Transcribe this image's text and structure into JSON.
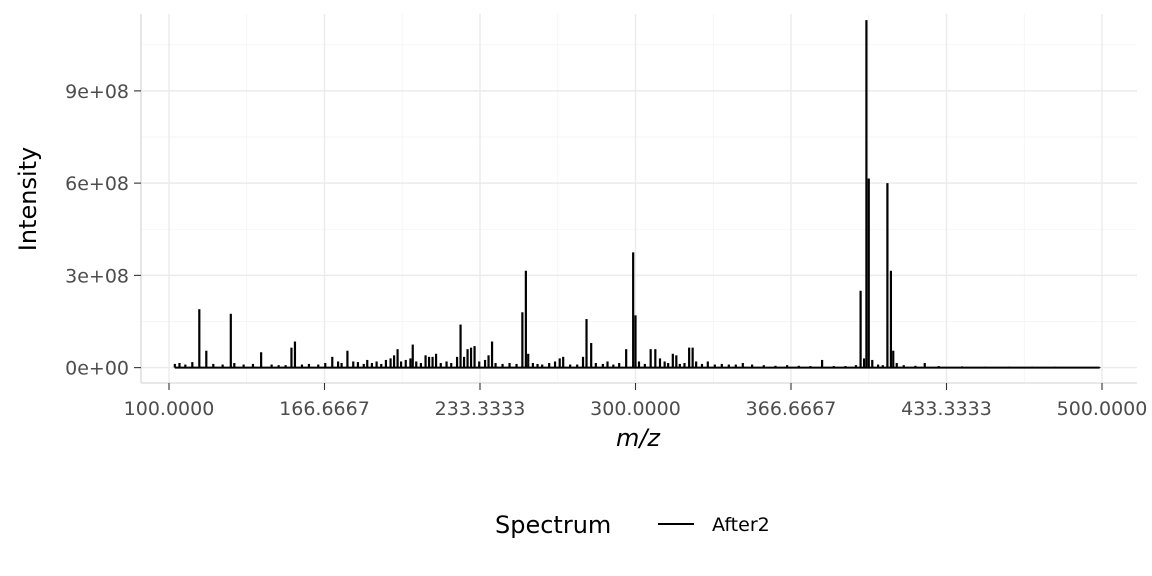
{
  "chart_data": {
    "type": "line",
    "xlabel": "m/z",
    "ylabel": "Intensity",
    "xlim": [
      88,
      515
    ],
    "ylim": [
      -50000000,
      1150000000
    ],
    "x_ticks": [
      100,
      166.6667,
      233.3333,
      300,
      366.6667,
      433.3333,
      500
    ],
    "x_tick_labels": [
      "100.0000",
      "166.6667",
      "233.3333",
      "300.0000",
      "366.6667",
      "433.3333",
      "500.0000"
    ],
    "y_ticks": [
      0,
      300000000,
      600000000,
      900000000
    ],
    "y_tick_labels": [
      "0e+00",
      "3e+08",
      "6e+08",
      "9e+08"
    ],
    "grid": true,
    "legend": {
      "title": "Spectrum",
      "position": "bottom"
    },
    "series": [
      {
        "name": "After2",
        "color": "#000000",
        "peaks": [
          [
            102.5,
            12000000
          ],
          [
            104.5,
            15000000
          ],
          [
            107,
            10000000
          ],
          [
            110,
            18000000
          ],
          [
            113,
            190000000
          ],
          [
            116,
            55000000
          ],
          [
            119,
            12000000
          ],
          [
            123,
            10000000
          ],
          [
            126.5,
            175000000
          ],
          [
            128,
            15000000
          ],
          [
            132,
            10000000
          ],
          [
            136,
            12000000
          ],
          [
            139.5,
            50000000
          ],
          [
            144,
            10000000
          ],
          [
            147,
            8000000
          ],
          [
            150,
            8000000
          ],
          [
            152.5,
            65000000
          ],
          [
            154,
            85000000
          ],
          [
            157,
            10000000
          ],
          [
            160,
            12000000
          ],
          [
            164,
            10000000
          ],
          [
            167,
            15000000
          ],
          [
            170,
            35000000
          ],
          [
            172.5,
            20000000
          ],
          [
            174,
            15000000
          ],
          [
            176.5,
            55000000
          ],
          [
            179,
            20000000
          ],
          [
            181,
            18000000
          ],
          [
            183.5,
            12000000
          ],
          [
            185,
            25000000
          ],
          [
            187,
            15000000
          ],
          [
            189,
            20000000
          ],
          [
            191,
            12000000
          ],
          [
            193,
            25000000
          ],
          [
            195,
            30000000
          ],
          [
            196.5,
            40000000
          ],
          [
            198,
            60000000
          ],
          [
            199.5,
            20000000
          ],
          [
            201.5,
            25000000
          ],
          [
            203.5,
            30000000
          ],
          [
            204.5,
            75000000
          ],
          [
            206,
            20000000
          ],
          [
            208,
            15000000
          ],
          [
            210,
            40000000
          ],
          [
            211.5,
            35000000
          ],
          [
            213,
            35000000
          ],
          [
            214.5,
            45000000
          ],
          [
            216.5,
            15000000
          ],
          [
            219,
            20000000
          ],
          [
            221,
            15000000
          ],
          [
            223.5,
            35000000
          ],
          [
            225,
            140000000
          ],
          [
            226.5,
            35000000
          ],
          [
            228,
            60000000
          ],
          [
            229.5,
            65000000
          ],
          [
            231,
            70000000
          ],
          [
            233,
            20000000
          ],
          [
            235.5,
            25000000
          ],
          [
            237,
            40000000
          ],
          [
            238.5,
            85000000
          ],
          [
            240,
            15000000
          ],
          [
            243,
            12000000
          ],
          [
            246,
            15000000
          ],
          [
            249,
            12000000
          ],
          [
            251.5,
            180000000
          ],
          [
            253,
            315000000
          ],
          [
            254,
            45000000
          ],
          [
            256,
            15000000
          ],
          [
            258,
            12000000
          ],
          [
            260,
            10000000
          ],
          [
            263,
            15000000
          ],
          [
            265.5,
            20000000
          ],
          [
            267.5,
            30000000
          ],
          [
            269,
            35000000
          ],
          [
            272,
            10000000
          ],
          [
            275,
            10000000
          ],
          [
            277.5,
            35000000
          ],
          [
            279,
            158000000
          ],
          [
            281,
            80000000
          ],
          [
            283,
            15000000
          ],
          [
            286,
            12000000
          ],
          [
            288,
            20000000
          ],
          [
            290.5,
            10000000
          ],
          [
            293,
            15000000
          ],
          [
            296,
            60000000
          ],
          [
            299,
            375000000
          ],
          [
            300,
            170000000
          ],
          [
            301.5,
            20000000
          ],
          [
            304,
            12000000
          ],
          [
            306.5,
            60000000
          ],
          [
            308.5,
            60000000
          ],
          [
            310.5,
            30000000
          ],
          [
            312.5,
            20000000
          ],
          [
            314,
            15000000
          ],
          [
            316,
            45000000
          ],
          [
            317.5,
            40000000
          ],
          [
            319,
            12000000
          ],
          [
            321,
            15000000
          ],
          [
            323,
            65000000
          ],
          [
            324.5,
            65000000
          ],
          [
            326,
            20000000
          ],
          [
            328.5,
            12000000
          ],
          [
            331,
            20000000
          ],
          [
            334,
            10000000
          ],
          [
            337,
            12000000
          ],
          [
            340,
            10000000
          ],
          [
            343,
            10000000
          ],
          [
            346,
            15000000
          ],
          [
            350,
            10000000
          ],
          [
            355,
            8000000
          ],
          [
            360,
            6000000
          ],
          [
            365,
            8000000
          ],
          [
            370,
            6000000
          ],
          [
            375,
            5000000
          ],
          [
            380,
            25000000
          ],
          [
            385,
            5000000
          ],
          [
            390,
            5000000
          ],
          [
            394.5,
            8000000
          ],
          [
            396.5,
            250000000
          ],
          [
            398,
            30000000
          ],
          [
            399,
            1130000000
          ],
          [
            400,
            615000000
          ],
          [
            401.5,
            25000000
          ],
          [
            404,
            10000000
          ],
          [
            406,
            8000000
          ],
          [
            408,
            600000000
          ],
          [
            409.5,
            315000000
          ],
          [
            410.5,
            55000000
          ],
          [
            412,
            15000000
          ],
          [
            415,
            8000000
          ],
          [
            420,
            6000000
          ],
          [
            424,
            15000000
          ],
          [
            430,
            5000000
          ],
          [
            440,
            4000000
          ],
          [
            450,
            3000000
          ],
          [
            460,
            3000000
          ],
          [
            470,
            3000000
          ],
          [
            480,
            3000000
          ],
          [
            490,
            2000000
          ],
          [
            499,
            2000000
          ]
        ]
      }
    ]
  }
}
